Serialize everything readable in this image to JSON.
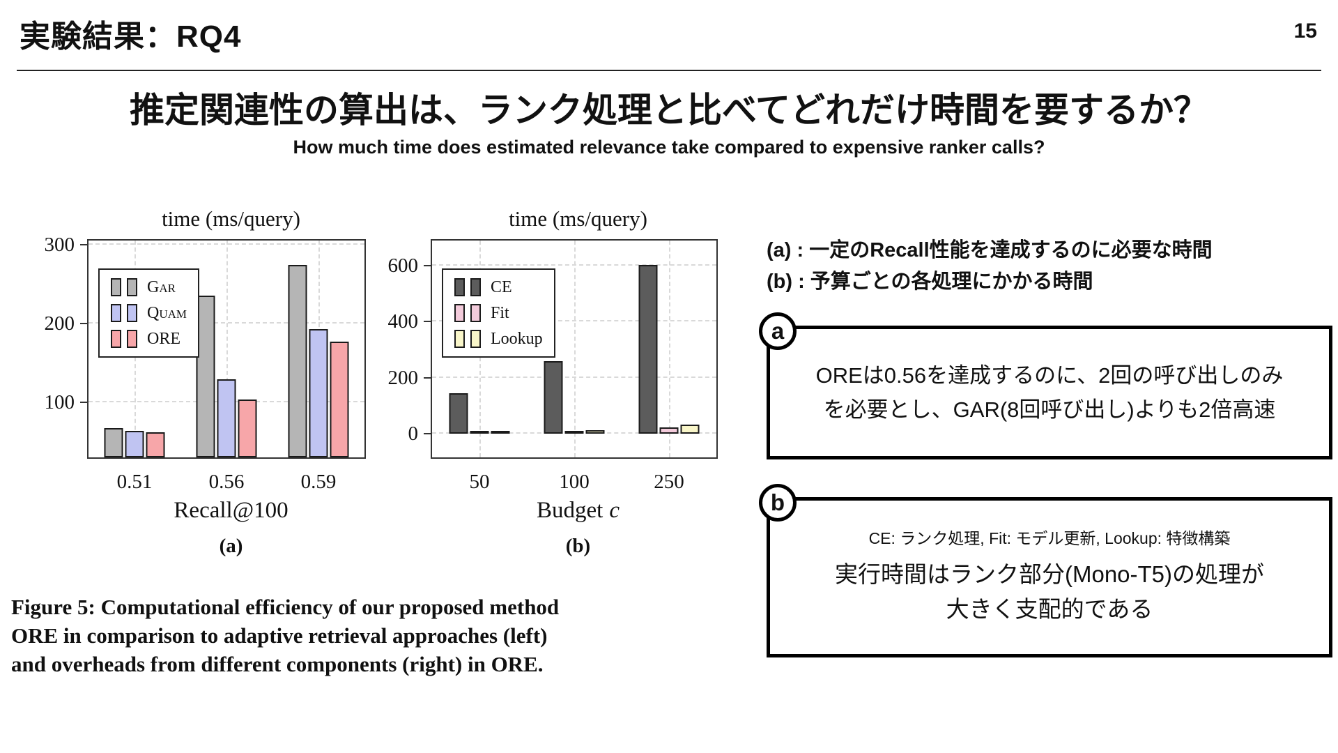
{
  "header": {
    "title": "実験結果：RQ4",
    "page_number": "15"
  },
  "heading": {
    "title": "推定関連性の算出は、ランク処理と比べてどれだけ時間を要するか？",
    "subtitle": "How much time does estimated relevance take compared to expensive ranker calls?"
  },
  "chart_data": [
    {
      "type": "bar",
      "title": "time (ms/query)",
      "categories": [
        "0.51",
        "0.56",
        "0.59"
      ],
      "series": [
        {
          "name": "Gar",
          "color": "#b5b5b5",
          "values": [
            67,
            235,
            274
          ]
        },
        {
          "name": "Quam",
          "color": "#c0c4f2",
          "values": [
            64,
            129,
            193
          ]
        },
        {
          "name": "ORE",
          "color": "#f7a6a9",
          "values": [
            62,
            103,
            177
          ]
        }
      ],
      "xlabel": "Recall@100",
      "xlabel_var": "",
      "ylabel": "",
      "ylim": [
        30,
        305
      ],
      "yticks": [
        100,
        200,
        300
      ],
      "grid": true,
      "legend_position": "upper-left",
      "panel_label": "(a)"
    },
    {
      "type": "bar",
      "title": "time (ms/query)",
      "categories": [
        "50",
        "100",
        "250"
      ],
      "series": [
        {
          "name": "CE",
          "color": "#5c5c5c",
          "values": [
            145,
            258,
            602
          ]
        },
        {
          "name": "Fit",
          "color": "#f3cbdb",
          "values": [
            4,
            9,
            22
          ]
        },
        {
          "name": "Lookup",
          "color": "#f9f6c9",
          "values": [
            4,
            12,
            31
          ]
        }
      ],
      "xlabel": "Budget",
      "xlabel_var": "c",
      "ylabel": "",
      "ylim": [
        -85,
        690
      ],
      "yticks": [
        0,
        200,
        400,
        600
      ],
      "grid": true,
      "legend_position": "upper-left",
      "panel_label": "(b)"
    }
  ],
  "figure": {
    "caption_lines": [
      "Figure 5: Computational efficiency of our proposed method",
      "ORE in comparison to adaptive retrieval approaches (left)",
      "and overheads from different components (right) in ORE."
    ]
  },
  "annotations": {
    "line_a": "(a) : 一定のRecall性能を達成するのに必要な時間",
    "line_b": "(b) : 予算ごとの各処理にかかる時間",
    "box_a": {
      "badge": "a",
      "lines": [
        "OREは0.56を達成するのに、2回の呼び出しのみ",
        "を必要とし、GAR(8回呼び出し)よりも2倍高速"
      ]
    },
    "box_b": {
      "badge": "b",
      "legend_note": "CE: ランク処理, Fit: モデル更新, Lookup: 特徴構築",
      "lines": [
        "実行時間はランク部分(Mono-T5)の処理が",
        "大きく支配的である"
      ]
    }
  }
}
